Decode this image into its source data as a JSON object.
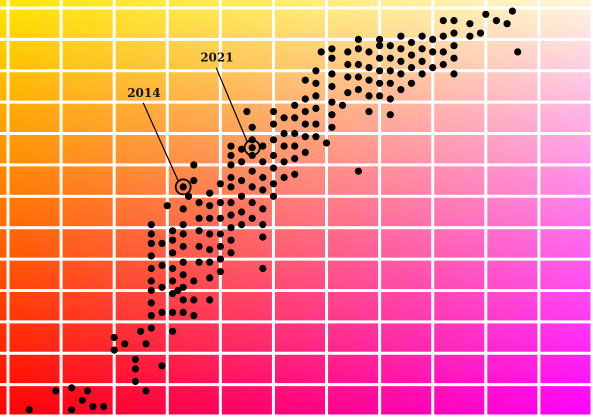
{
  "chart_data": {
    "type": "scatter",
    "title": "",
    "xlabel": "",
    "ylabel": "",
    "grid": true,
    "grid_cells": {
      "columns": 11,
      "rows": 13
    },
    "background": {
      "top_left": "#ffe600",
      "top_right": "#fff6e0",
      "bottom_left": "#ff0000",
      "bottom_right": "#ff00ff",
      "gridline": "#ffffff"
    },
    "marker_color": "#000000",
    "annotations": [
      {
        "text": "2014",
        "x": 3.3,
        "y": 7.3
      },
      {
        "text": "2021",
        "x": 4.6,
        "y": 8.55
      }
    ],
    "series": [
      {
        "points": [
          [
            0.4,
            0.2
          ],
          [
            0.9,
            0.8
          ],
          [
            1.2,
            0.9
          ],
          [
            1.5,
            0.8
          ],
          [
            1.4,
            0.5
          ],
          [
            1.6,
            0.3
          ],
          [
            1.8,
            0.3
          ],
          [
            1.2,
            0.2
          ],
          [
            2.0,
            2.1
          ],
          [
            2.0,
            2.5
          ],
          [
            2.2,
            2.3
          ],
          [
            2.4,
            1.8
          ],
          [
            2.4,
            1.5
          ],
          [
            2.4,
            1.1
          ],
          [
            2.5,
            2.7
          ],
          [
            2.6,
            0.8
          ],
          [
            2.6,
            2.3
          ],
          [
            2.7,
            2.8
          ],
          [
            2.7,
            3.2
          ],
          [
            2.7,
            3.6
          ],
          [
            2.7,
            4.0
          ],
          [
            2.7,
            4.3
          ],
          [
            2.7,
            4.7
          ],
          [
            2.7,
            5.1
          ],
          [
            2.7,
            5.5
          ],
          [
            2.7,
            5.8
          ],
          [
            2.7,
            6.1
          ],
          [
            2.9,
            1.6
          ],
          [
            2.9,
            3.3
          ],
          [
            2.9,
            4.1
          ],
          [
            2.9,
            4.8
          ],
          [
            2.9,
            5.5
          ],
          [
            3.0,
            6.7
          ],
          [
            3.1,
            2.7
          ],
          [
            3.1,
            3.3
          ],
          [
            3.1,
            3.9
          ],
          [
            3.1,
            4.3
          ],
          [
            3.1,
            4.7
          ],
          [
            3.1,
            5.2
          ],
          [
            3.1,
            5.6
          ],
          [
            3.1,
            5.9
          ],
          [
            3.2,
            4.0
          ],
          [
            3.3,
            6.6
          ],
          [
            3.3,
            6.1
          ],
          [
            3.3,
            5.8
          ],
          [
            3.3,
            5.4
          ],
          [
            3.3,
            4.9
          ],
          [
            3.3,
            4.5
          ],
          [
            3.3,
            4.1
          ],
          [
            3.3,
            3.7
          ],
          [
            3.3,
            3.3
          ],
          [
            3.4,
            7.0
          ],
          [
            3.5,
            4.3
          ],
          [
            3.5,
            3.7
          ],
          [
            3.5,
            3.2
          ],
          [
            3.5,
            7.5
          ],
          [
            3.5,
            8.0
          ],
          [
            3.6,
            4.9
          ],
          [
            3.6,
            5.4
          ],
          [
            3.6,
            5.9
          ],
          [
            3.6,
            6.3
          ],
          [
            3.6,
            6.8
          ],
          [
            3.8,
            7.1
          ],
          [
            3.8,
            6.7
          ],
          [
            3.8,
            6.3
          ],
          [
            3.8,
            5.8
          ],
          [
            3.8,
            5.3
          ],
          [
            3.8,
            4.9
          ],
          [
            3.8,
            4.4
          ],
          [
            3.8,
            3.7
          ],
          [
            4.0,
            4.6
          ],
          [
            4.0,
            5.0
          ],
          [
            4.0,
            5.4
          ],
          [
            4.0,
            5.8
          ],
          [
            4.0,
            6.3
          ],
          [
            4.0,
            6.8
          ],
          [
            4.0,
            7.4
          ],
          [
            4.2,
            5.2
          ],
          [
            4.2,
            5.6
          ],
          [
            4.2,
            6.0
          ],
          [
            4.2,
            6.4
          ],
          [
            4.2,
            6.8
          ],
          [
            4.2,
            7.3
          ],
          [
            4.2,
            7.6
          ],
          [
            4.2,
            8.0
          ],
          [
            4.2,
            8.3
          ],
          [
            4.2,
            8.6
          ],
          [
            4.4,
            6.1
          ],
          [
            4.4,
            6.5
          ],
          [
            4.4,
            7.0
          ],
          [
            4.4,
            7.5
          ],
          [
            4.4,
            8.1
          ],
          [
            4.4,
            8.5
          ],
          [
            4.5,
            9.7
          ],
          [
            4.6,
            6.3
          ],
          [
            4.6,
            6.8
          ],
          [
            4.6,
            7.3
          ],
          [
            4.6,
            7.8
          ],
          [
            4.6,
            8.3
          ],
          [
            4.6,
            8.8
          ],
          [
            4.6,
            9.2
          ],
          [
            4.8,
            5.7
          ],
          [
            4.8,
            6.1
          ],
          [
            4.8,
            6.6
          ],
          [
            4.8,
            7.2
          ],
          [
            4.8,
            7.6
          ],
          [
            4.8,
            8.1
          ],
          [
            4.8,
            8.6
          ],
          [
            4.8,
            4.7
          ],
          [
            5.0,
            7.0
          ],
          [
            5.0,
            7.4
          ],
          [
            5.0,
            7.9
          ],
          [
            5.0,
            8.3
          ],
          [
            5.0,
            8.8
          ],
          [
            5.0,
            9.3
          ],
          [
            5.0,
            9.7
          ],
          [
            5.2,
            7.6
          ],
          [
            5.2,
            8.1
          ],
          [
            5.2,
            8.6
          ],
          [
            5.2,
            9.0
          ],
          [
            5.2,
            9.5
          ],
          [
            5.4,
            7.7
          ],
          [
            5.4,
            8.2
          ],
          [
            5.4,
            8.6
          ],
          [
            5.4,
            9.0
          ],
          [
            5.4,
            9.5
          ],
          [
            5.4,
            9.9
          ],
          [
            5.6,
            8.4
          ],
          [
            5.6,
            8.9
          ],
          [
            5.6,
            9.3
          ],
          [
            5.6,
            9.7
          ],
          [
            5.6,
            10.1
          ],
          [
            5.6,
            10.7
          ],
          [
            5.8,
            8.9
          ],
          [
            5.8,
            9.3
          ],
          [
            5.8,
            9.8
          ],
          [
            5.8,
            10.2
          ],
          [
            5.8,
            10.6
          ],
          [
            5.8,
            11.0
          ],
          [
            5.9,
            11.6
          ],
          [
            6.0,
            8.7
          ],
          [
            6.1,
            9.2
          ],
          [
            6.1,
            9.6
          ],
          [
            6.1,
            10.0
          ],
          [
            6.1,
            10.5
          ],
          [
            6.1,
            10.9
          ],
          [
            6.1,
            11.4
          ],
          [
            6.1,
            11.7
          ],
          [
            6.3,
            9.9
          ],
          [
            6.4,
            10.3
          ],
          [
            6.4,
            10.8
          ],
          [
            6.4,
            11.2
          ],
          [
            6.4,
            11.6
          ],
          [
            6.6,
            7.8
          ],
          [
            6.6,
            10.4
          ],
          [
            6.6,
            10.8
          ],
          [
            6.6,
            11.2
          ],
          [
            6.6,
            11.7
          ],
          [
            6.6,
            12.0
          ],
          [
            6.8,
            9.7
          ],
          [
            6.8,
            10.2
          ],
          [
            6.8,
            10.7
          ],
          [
            6.8,
            11.1
          ],
          [
            6.8,
            11.6
          ],
          [
            7.0,
            10.2
          ],
          [
            7.0,
            10.6
          ],
          [
            7.0,
            11.0
          ],
          [
            7.0,
            11.4
          ],
          [
            7.0,
            11.8
          ],
          [
            7.0,
            12.0
          ],
          [
            7.2,
            9.6
          ],
          [
            7.2,
            10.1
          ],
          [
            7.2,
            10.6
          ],
          [
            7.2,
            11.0
          ],
          [
            7.2,
            11.4
          ],
          [
            7.2,
            11.8
          ],
          [
            7.4,
            10.4
          ],
          [
            7.4,
            10.9
          ],
          [
            7.4,
            11.3
          ],
          [
            7.4,
            11.7
          ],
          [
            7.4,
            12.1
          ],
          [
            7.6,
            10.6
          ],
          [
            7.6,
            11.1
          ],
          [
            7.6,
            11.5
          ],
          [
            7.6,
            11.9
          ],
          [
            7.8,
            10.9
          ],
          [
            7.8,
            11.3
          ],
          [
            7.8,
            11.7
          ],
          [
            7.8,
            12.1
          ],
          [
            8.0,
            11.1
          ],
          [
            8.0,
            11.6
          ],
          [
            8.0,
            12.0
          ],
          [
            8.2,
            11.2
          ],
          [
            8.2,
            11.6
          ],
          [
            8.2,
            12.1
          ],
          [
            8.2,
            12.6
          ],
          [
            8.4,
            10.9
          ],
          [
            8.4,
            11.4
          ],
          [
            8.4,
            11.8
          ],
          [
            8.4,
            12.2
          ],
          [
            8.4,
            12.6
          ],
          [
            8.7,
            12.1
          ],
          [
            8.7,
            12.5
          ],
          [
            8.9,
            12.2
          ],
          [
            9.0,
            12.8
          ],
          [
            9.2,
            12.6
          ],
          [
            9.4,
            12.5
          ],
          [
            9.5,
            12.9
          ],
          [
            9.6,
            11.6
          ]
        ]
      }
    ]
  }
}
